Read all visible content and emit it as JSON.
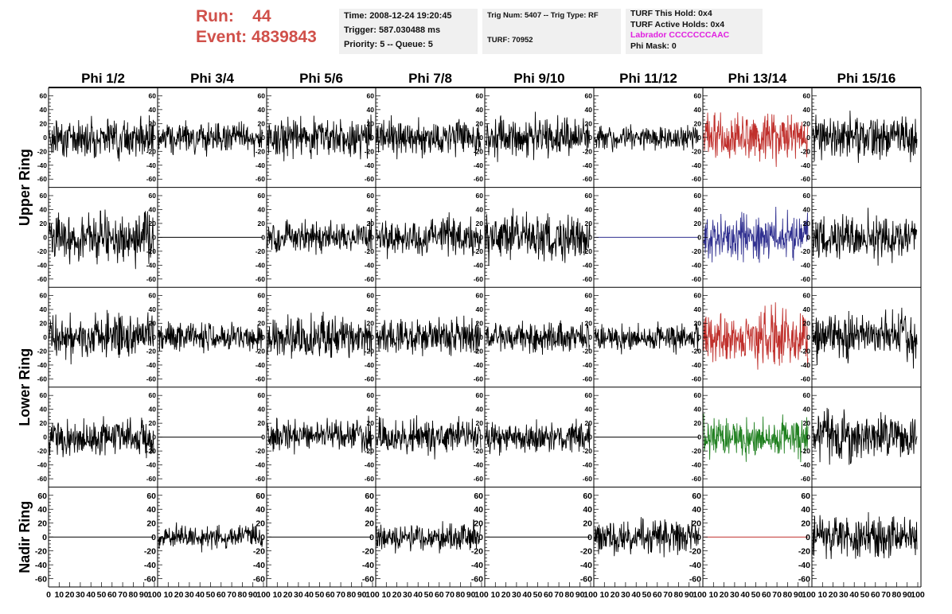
{
  "run": {
    "label": "Run:",
    "value": "44"
  },
  "event": {
    "label": "Event:",
    "value": "4839843"
  },
  "info1": {
    "time": "Time: 2008-12-24 19:20:45",
    "trigger": "Trigger: 587.030488 ms",
    "priority": "Priority: 5 -- Queue: 5"
  },
  "info2": {
    "trig": "Trig Num: 5407 -- Trig Type: RF",
    "turf": "TURF: 70952"
  },
  "info3": {
    "hold": "TURF This Hold: 0x4",
    "active": "TURF Active Holds: 0x4",
    "labrador": "Labrador CCCCCCCAAC",
    "phimask": "Phi Mask: 0"
  },
  "columns": [
    "Phi 1/2",
    "Phi 3/4",
    "Phi 5/6",
    "Phi 7/8",
    "Phi 9/10",
    "Phi 11/12",
    "Phi 13/14",
    "Phi 15/16"
  ],
  "row_labels": [
    "Upper Ring",
    "Lower Ring",
    "Nadir Ring"
  ],
  "y_ticks": [
    "60",
    "40",
    "20",
    "0",
    "-20",
    "-40",
    "-60"
  ],
  "x_ticks": [
    "0",
    "10",
    "20",
    "30",
    "40",
    "50",
    "60",
    "70",
    "80",
    "90",
    "100"
  ],
  "colors": {
    "title": "#d0504a",
    "info_bg": "#f0f0f0",
    "labrador": "#e020e0",
    "trace": "#000000",
    "red": "#c0302c",
    "blue": "#303090",
    "green": "#208020"
  },
  "chart_data": {
    "type": "line",
    "xlim": [
      0,
      100
    ],
    "ylim": [
      -65,
      65
    ],
    "panels": [
      {
        "row": 0,
        "col": 0,
        "amp": 13,
        "color": "#000000"
      },
      {
        "row": 0,
        "col": 1,
        "amp": 10,
        "color": "#000000"
      },
      {
        "row": 0,
        "col": 2,
        "amp": 14,
        "color": "#000000"
      },
      {
        "row": 0,
        "col": 3,
        "amp": 12,
        "color": "#000000"
      },
      {
        "row": 0,
        "col": 4,
        "amp": 13,
        "color": "#000000"
      },
      {
        "row": 0,
        "col": 5,
        "amp": 8,
        "color": "#000000"
      },
      {
        "row": 0,
        "col": 6,
        "amp": 17,
        "color": "#c0302c"
      },
      {
        "row": 0,
        "col": 7,
        "amp": 16,
        "color": "#000000"
      },
      {
        "row": 1,
        "col": 0,
        "amp": 17,
        "color": "#000000"
      },
      {
        "row": 1,
        "col": 1,
        "amp": 0,
        "color": "#000000"
      },
      {
        "row": 1,
        "col": 2,
        "amp": 11,
        "color": "#000000"
      },
      {
        "row": 1,
        "col": 3,
        "amp": 13,
        "color": "#000000"
      },
      {
        "row": 1,
        "col": 4,
        "amp": 16,
        "color": "#000000"
      },
      {
        "row": 1,
        "col": 5,
        "amp": 0,
        "color": "#303090"
      },
      {
        "row": 1,
        "col": 6,
        "amp": 16,
        "color": "#303090"
      },
      {
        "row": 1,
        "col": 7,
        "amp": 15,
        "color": "#000000"
      },
      {
        "row": 2,
        "col": 0,
        "amp": 15,
        "color": "#000000"
      },
      {
        "row": 2,
        "col": 1,
        "amp": 10,
        "color": "#000000"
      },
      {
        "row": 2,
        "col": 2,
        "amp": 14,
        "color": "#000000"
      },
      {
        "row": 2,
        "col": 3,
        "amp": 12,
        "color": "#000000"
      },
      {
        "row": 2,
        "col": 4,
        "amp": 11,
        "color": "#000000"
      },
      {
        "row": 2,
        "col": 5,
        "amp": 9,
        "color": "#000000"
      },
      {
        "row": 2,
        "col": 6,
        "amp": 20,
        "color": "#c0302c"
      },
      {
        "row": 2,
        "col": 7,
        "amp": 16,
        "color": "#000000"
      },
      {
        "row": 3,
        "col": 0,
        "amp": 13,
        "color": "#000000"
      },
      {
        "row": 3,
        "col": 1,
        "amp": 0,
        "color": "#000000"
      },
      {
        "row": 3,
        "col": 2,
        "amp": 11,
        "color": "#000000"
      },
      {
        "row": 3,
        "col": 3,
        "amp": 12,
        "color": "#000000"
      },
      {
        "row": 3,
        "col": 4,
        "amp": 11,
        "color": "#000000"
      },
      {
        "row": 3,
        "col": 5,
        "amp": 0,
        "color": "#000000"
      },
      {
        "row": 3,
        "col": 6,
        "amp": 13,
        "color": "#208020"
      },
      {
        "row": 3,
        "col": 7,
        "amp": 17,
        "color": "#000000"
      },
      {
        "row": 4,
        "col": 0,
        "amp": 0,
        "color": "#000000"
      },
      {
        "row": 4,
        "col": 1,
        "amp": 8,
        "color": "#000000"
      },
      {
        "row": 4,
        "col": 2,
        "amp": 0,
        "color": "#000000"
      },
      {
        "row": 4,
        "col": 3,
        "amp": 10,
        "color": "#000000"
      },
      {
        "row": 4,
        "col": 4,
        "amp": 0,
        "color": "#000000"
      },
      {
        "row": 4,
        "col": 5,
        "amp": 12,
        "color": "#000000"
      },
      {
        "row": 4,
        "col": 6,
        "amp": 0,
        "color": "#c0302c"
      },
      {
        "row": 4,
        "col": 7,
        "amp": 15,
        "color": "#000000"
      }
    ]
  }
}
